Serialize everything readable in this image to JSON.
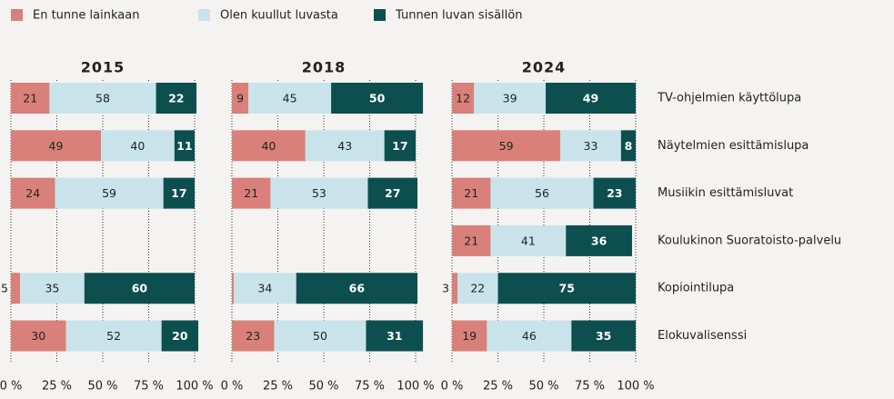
{
  "chart_data": [
    {
      "type": "bar",
      "orientation": "horizontal",
      "stacked": true,
      "title": "2015",
      "categories": [
        null,
        null,
        null,
        null,
        null,
        null
      ],
      "series": [
        {
          "name": "En tunne lainkaan",
          "color": "#d9807a",
          "values": [
            21,
            49,
            24,
            null,
            5,
            30
          ]
        },
        {
          "name": "Olen kuullut luvasta",
          "color": "#c9e3ea",
          "values": [
            58,
            40,
            59,
            null,
            35,
            52
          ]
        },
        {
          "name": "Tunnen luvan sisällön",
          "color": "#0d4f4f",
          "values": [
            22,
            11,
            17,
            null,
            60,
            20
          ]
        }
      ],
      "xlim": [
        0,
        100
      ],
      "xticks": [
        {
          "value": 0,
          "label": "0 %"
        },
        {
          "value": 25,
          "label": "25 %"
        },
        {
          "value": 50,
          "label": "50 %"
        },
        {
          "value": 75,
          "label": "75 %"
        },
        {
          "value": 100,
          "label": "100 %"
        }
      ],
      "grid": true,
      "legend": "top"
    },
    {
      "type": "bar",
      "orientation": "horizontal",
      "stacked": true,
      "title": "2018",
      "categories": [
        null,
        null,
        null,
        null,
        null,
        null
      ],
      "series": [
        {
          "color": "#d9807a",
          "values": [
            9,
            40,
            21,
            null,
            1,
            23
          ],
          "value_labels": [
            "9",
            "40",
            "21",
            null,
            null,
            "23"
          ]
        },
        {
          "color": "#c9e3ea",
          "values": [
            45,
            43,
            53,
            null,
            34,
            50
          ]
        },
        {
          "color": "#0d4f4f",
          "values": [
            50,
            17,
            27,
            null,
            66,
            31
          ]
        }
      ],
      "xlim": [
        0,
        100
      ],
      "xticks": [
        {
          "value": 0,
          "label": "0 %"
        },
        {
          "value": 25,
          "label": "25 %"
        },
        {
          "value": 50,
          "label": "50 %"
        },
        {
          "value": 75,
          "label": "75 %"
        },
        {
          "value": 100,
          "label": "100 %"
        }
      ],
      "grid": true
    },
    {
      "type": "bar",
      "orientation": "horizontal",
      "stacked": true,
      "title": "2024",
      "categories": [
        "TV-ohjelmien käyttölupa",
        "Näytelmien esittämislupa",
        "Musiikin esittämisluvat",
        "Koulukinon Suoratoisto-palvelu",
        "Kopiointilupa",
        "Elokuvalisenssi"
      ],
      "series": [
        {
          "color": "#d9807a",
          "values": [
            12,
            59,
            21,
            21,
            3,
            19
          ]
        },
        {
          "color": "#c9e3ea",
          "values": [
            39,
            33,
            56,
            41,
            22,
            46
          ]
        },
        {
          "color": "#0d4f4f",
          "values": [
            49,
            8,
            23,
            36,
            75,
            35
          ]
        }
      ],
      "xlim": [
        0,
        100
      ],
      "xticks": [
        {
          "value": 0,
          "label": "0 %"
        },
        {
          "value": 25,
          "label": "25 %"
        },
        {
          "value": 50,
          "label": "50 %"
        },
        {
          "value": 75,
          "label": "75 %"
        },
        {
          "value": 100,
          "label": "100 %"
        }
      ],
      "grid": true
    }
  ]
}
